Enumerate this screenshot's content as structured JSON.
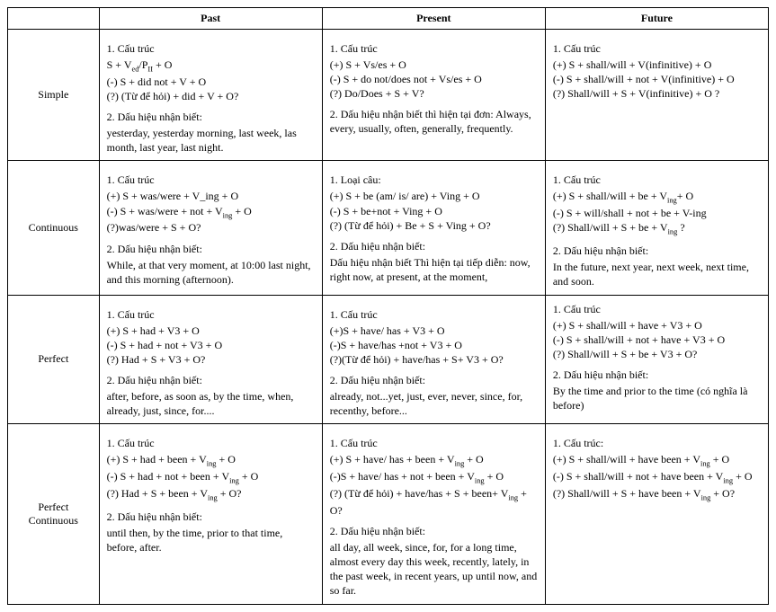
{
  "headers": {
    "blank": "",
    "past": "Past",
    "present": "Present",
    "future": "Future"
  },
  "rows": {
    "simple": {
      "label": "Simple",
      "past": {
        "t1": "1. Cấu trúc",
        "a": " S + V<sub>ed</sub>/P<sub>II</sub>  + O",
        "b": "(-) S + did not  + V + O",
        "c": "(?) (Từ để hỏi) + did  + V + O?",
        "t2": "2. Dấu hiệu nhận biết:",
        "d": "yesterday, yesterday morning, last week, las month, last year, last night."
      },
      "present": {
        "t1": "1. Cấu trúc",
        "a": " (+) S + Vs/es + O",
        "b": "(-)  S + do not/does not + Vs/es + O",
        "c": "(?) Do/Does + S + V?",
        "t2": "2. Dấu hiệu nhận biết thì hiện tại đơn: Always, every, usually, often, generally, frequently."
      },
      "future": {
        "t1": "1. Cấu trúc",
        "a": "(+) S + shall/will + V(infinitive) + O",
        "b": "(-) S + shall/will + not + V(infinitive) + O",
        "c": "(?) Shall/will + S + V(infinitive) + O ?"
      }
    },
    "continuous": {
      "label": "Continuous",
      "past": {
        "t1": "1. Cấu trúc",
        "a": "(+) S + was/were + V_ing + O",
        "b": "(-) S + was/were + not  + V<sub>ing</sub> + O",
        "c": "(?)was/were + S + O?",
        "t2": "2. Dấu hiệu nhận biết:",
        "d": "While, at that very moment, at 10:00 last night, and this morning (afternoon)."
      },
      "present": {
        "t1": "1. Loại câu:",
        "a": "(+) S + be (am/ is/ are) + Ving + O",
        "b": "(-)  S + be+not  + Ving + O",
        "c": "(?)  (Từ để hỏi) + Be + S + Ving + O?",
        "t2": "2. Dấu hiệu nhận biết:",
        "d": "Dấu hiệu nhận biết Thì hiện tại tiếp diễn: now, right now, at present, at the moment,"
      },
      "future": {
        "t1": "1. Cấu trúc",
        "a": "(+) S + shall/will + be + V<sub>ing</sub>+ O",
        "b": "(-) S + will/shall + not + be + V-ing",
        "c": "(?) Shall/will + S + be + V<sub>ing</sub> ?",
        "t2": "2. Dấu hiệu nhận biết:",
        "d": "In the future, next year, next week, next time, and soon."
      }
    },
    "perfect": {
      "label": "Perfect",
      "past": {
        "t1": "1. Cấu trúc",
        "a": " (+) S + had + V3 + O",
        "b": " (-) S + had + not + V3 + O",
        "c": " (?) Had + S + V3 + O?",
        "t2": "2. Dấu hiệu nhận biết:",
        "d": "after, before, as soon as, by the time, when, already, just, since, for...."
      },
      "present": {
        "t1": "1. Cấu trúc",
        "a": " (+)S + have/ has + V3 + O",
        "b": " (-)S + have/has +not + V3 + O",
        "c": " (?)(Từ để hỏi) + have/has + S+ V3 + O?",
        "t2": "2. Dấu hiệu nhận biết:",
        "d": "already, not...yet, just, ever, never, since, for, recenthy, before..."
      },
      "future": {
        "t1": "1. Cấu trúc",
        "a": " (+) S + shall/will + have + V3 + O",
        "b": " (-) S + shall/will + not + have + V3 + O",
        "c": " (?) Shall/will + S + be + V3 + O?",
        "t2": "2. Dấu hiệu nhận biết:",
        "d": "By the time and prior to the time (có nghĩa là before)"
      }
    },
    "perfcont": {
      "label": "Perfect Continuous",
      "past": {
        "t1": "1. Cấu trúc",
        "a": " (+) S + had + been + V<sub>ing</sub> + O",
        "b": " (-) S + had + not + been + V<sub>ing</sub> + O",
        "c": " (?) Had + S + been + V<sub>ing</sub> + O?",
        "t2": "2. Dấu hiệu nhận biết:",
        "d": "until then, by the time, prior to that time, before, after."
      },
      "present": {
        "t1": "1. Cấu trúc",
        "a": " (+) S + have/ has + been + V<sub>ing</sub> + O",
        "b": " (-)S + have/ has + not  + been  + V<sub>ing</sub> + O",
        "c": " (?) (Từ để hỏi) + have/has + S + been+ V<sub>ing</sub> + O?",
        "t2": "2. Dấu hiệu nhận biết:",
        "d": "all day, all week, since, for, for a long time, almost every day this week, recently, lately, in the past week, in recent years, up until now, and so far."
      },
      "future": {
        "t1": "1. Cấu trúc:",
        "a": " (+) S + shall/will + have been + V<sub>ing</sub> + O",
        "b": " (-) S + shall/will + not + have been + V<sub>ing</sub> + O",
        "c": " (?) Shall/will + S + have been + V<sub>ing</sub> + O?"
      }
    }
  }
}
